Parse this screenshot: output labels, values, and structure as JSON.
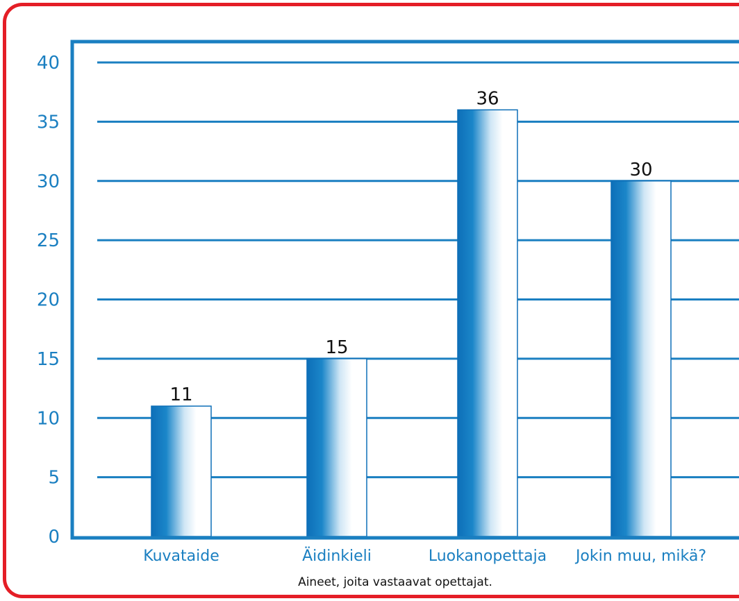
{
  "chart_data": {
    "type": "bar",
    "categories": [
      "Kuvataide",
      "Äidinkieli",
      "Luokanopettaja",
      "Jokin muu, mikä?"
    ],
    "values": [
      11,
      15,
      36,
      30
    ],
    "data_labels": [
      "11",
      "15",
      "36",
      "30"
    ],
    "title": "",
    "xlabel": "Aineet, joita vastaavat opettajat.",
    "ylabel": "",
    "ylim": [
      0,
      40
    ],
    "yticks": [
      0,
      5,
      10,
      15,
      20,
      25,
      30,
      35,
      40
    ],
    "grid": true,
    "legend": "none"
  },
  "colors": {
    "frame": "#e41e26",
    "axis": "#1a7fc1",
    "bar_dark": "#0d6fb8",
    "bar_light": "#ffffff",
    "text_tick": "#1a7fc1",
    "text_label": "#111111"
  }
}
